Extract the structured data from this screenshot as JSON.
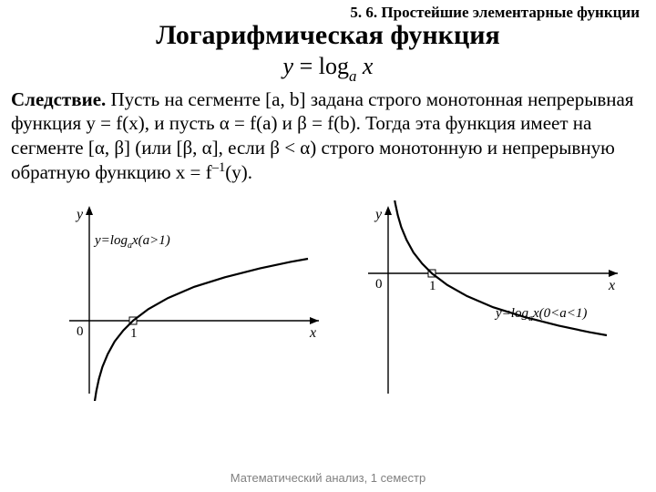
{
  "header": {
    "section_label": "5. 6. Простейшие элементарные функции"
  },
  "title": {
    "text": "Логарифмическая функция"
  },
  "formula": {
    "lhs": "y",
    "eq": " = log",
    "sub": "a",
    "rhs": " x"
  },
  "body": {
    "lead": "Следствие.",
    "text": " Пусть на сегменте [a, b] задана строго монотонная непрерывная функция y = f(x), и пусть α = f(a) и β = f(b). Тогда эта функция имеет на сегменте [α, β] (или [β, α], если β < α) строго монотонную и непрерывную обратную функцию x = f",
    "sup": "–1",
    "text_tail": "(y)."
  },
  "chart_left": {
    "type": "line",
    "x_axis_label": "x",
    "y_axis_label": "y",
    "origin_label": "0",
    "tick_label": "1",
    "curve_label_prefix": "y=log",
    "curve_label_sub": "a",
    "curve_label_suffix": "x(a>1)",
    "axis_color": "#000000",
    "curve_color": "#000000",
    "curve_width": 2.2,
    "marker_at_one": {
      "cx_rel": 0,
      "cy_rel": 0
    },
    "xlim": [
      0.05,
      5
    ],
    "ylim": [
      -2.5,
      2.0
    ],
    "points": [
      {
        "x": 0.12,
        "y": -2.12
      },
      {
        "x": 0.16,
        "y": -1.83
      },
      {
        "x": 0.22,
        "y": -1.51
      },
      {
        "x": 0.3,
        "y": -1.2
      },
      {
        "x": 0.42,
        "y": -0.87
      },
      {
        "x": 0.58,
        "y": -0.54
      },
      {
        "x": 0.78,
        "y": -0.25
      },
      {
        "x": 1.0,
        "y": 0.0
      },
      {
        "x": 1.35,
        "y": 0.3
      },
      {
        "x": 1.8,
        "y": 0.59
      },
      {
        "x": 2.4,
        "y": 0.88
      },
      {
        "x": 3.1,
        "y": 1.13
      },
      {
        "x": 3.9,
        "y": 1.36
      },
      {
        "x": 4.6,
        "y": 1.53
      },
      {
        "x": 5.0,
        "y": 1.61
      }
    ]
  },
  "chart_right": {
    "type": "line",
    "x_axis_label": "x",
    "y_axis_label": "y",
    "origin_label": "0",
    "tick_label": "1",
    "curve_label_prefix": "y=log",
    "curve_label_sub": "a",
    "curve_label_suffix": "x(0<a<1)",
    "axis_color": "#000000",
    "curve_color": "#000000",
    "curve_width": 2.2,
    "xlim": [
      0.05,
      5
    ],
    "ylim": [
      -2.0,
      2.5
    ],
    "points": [
      {
        "x": 0.12,
        "y": 2.12
      },
      {
        "x": 0.16,
        "y": 1.83
      },
      {
        "x": 0.22,
        "y": 1.51
      },
      {
        "x": 0.3,
        "y": 1.2
      },
      {
        "x": 0.42,
        "y": 0.87
      },
      {
        "x": 0.58,
        "y": 0.54
      },
      {
        "x": 0.78,
        "y": 0.25
      },
      {
        "x": 1.0,
        "y": 0.0
      },
      {
        "x": 1.35,
        "y": -0.3
      },
      {
        "x": 1.8,
        "y": -0.59
      },
      {
        "x": 2.4,
        "y": -0.88
      },
      {
        "x": 3.1,
        "y": -1.13
      },
      {
        "x": 3.9,
        "y": -1.36
      },
      {
        "x": 4.6,
        "y": -1.53
      },
      {
        "x": 5.0,
        "y": -1.61
      }
    ]
  },
  "footer": {
    "text": "Математический анализ, 1 семестр"
  }
}
